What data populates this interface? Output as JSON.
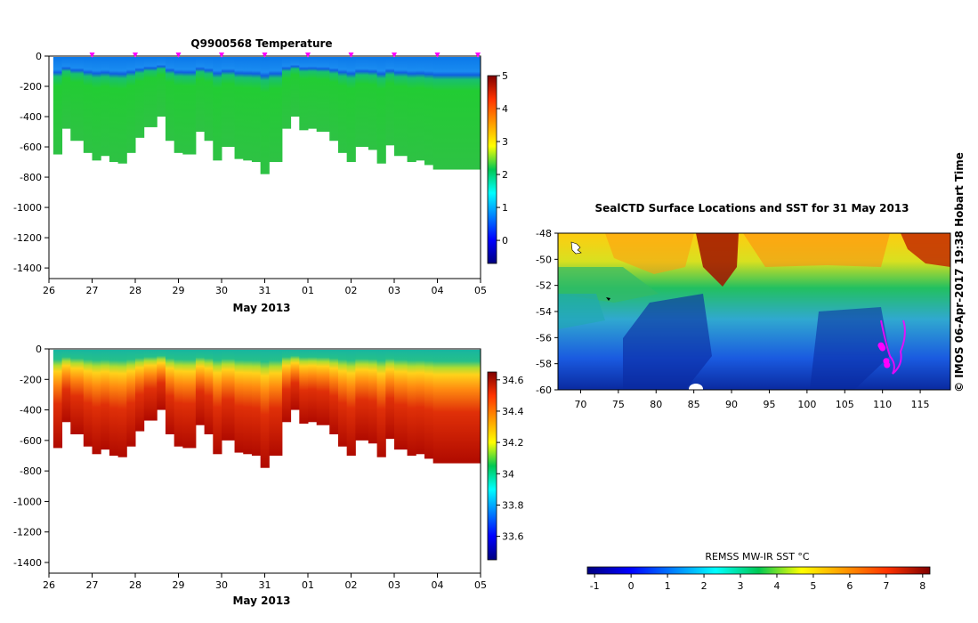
{
  "chart_data": [
    {
      "type": "heatmap",
      "title": "Q9900568  Temperature",
      "xlabel": "May 2013",
      "x_ticks": [
        "26",
        "27",
        "28",
        "29",
        "30",
        "31",
        "01",
        "02",
        "03",
        "04",
        "05"
      ],
      "xlim": [
        26,
        36
      ],
      "y_ticks": [
        0,
        -200,
        -400,
        -600,
        -800,
        -1000,
        -1200,
        -1400
      ],
      "ylim": [
        -1470,
        0
      ],
      "profile_times": [
        26.1,
        26.3,
        26.5,
        26.8,
        27.0,
        27.2,
        27.4,
        27.6,
        27.8,
        28.0,
        28.2,
        28.5,
        28.7,
        28.9,
        29.1,
        29.4,
        29.6,
        29.8,
        30.0,
        30.3,
        30.5,
        30.7,
        30.9,
        31.1,
        31.4,
        31.6,
        31.8,
        32.0,
        32.2,
        32.5,
        32.7,
        32.9,
        33.1,
        33.4,
        33.6,
        33.8,
        34.0,
        34.3,
        34.5,
        34.7,
        34.9
      ],
      "profile_depths": [
        650,
        480,
        560,
        640,
        690,
        660,
        700,
        710,
        640,
        540,
        470,
        400,
        560,
        640,
        650,
        500,
        560,
        690,
        600,
        680,
        690,
        700,
        780,
        700,
        480,
        400,
        490,
        480,
        500,
        560,
        640,
        700,
        600,
        620,
        710,
        590,
        660,
        700,
        690,
        720,
        750
      ],
      "markers": [
        27,
        28,
        29,
        30,
        31,
        32,
        33,
        34,
        35,
        36
      ],
      "colorbar": {
        "ticks": [
          0,
          1,
          2,
          3,
          4,
          5
        ],
        "range": [
          -0.7,
          5
        ]
      }
    },
    {
      "type": "heatmap",
      "title": "",
      "xlabel": "May 2013",
      "x_ticks": [
        "26",
        "27",
        "28",
        "29",
        "30",
        "31",
        "01",
        "02",
        "03",
        "04",
        "05"
      ],
      "xlim": [
        26,
        36
      ],
      "y_ticks": [
        0,
        -200,
        -400,
        -600,
        -800,
        -1000,
        -1200,
        -1400
      ],
      "ylim": [
        -1470,
        0
      ],
      "colorbar": {
        "ticks": [
          "33.6",
          "33.8",
          "34",
          "34.2",
          "34.4",
          "34.6"
        ],
        "range": [
          33.45,
          34.65
        ]
      }
    },
    {
      "type": "heatmap",
      "title": "SealCTD Surface Locations and SST for 31 May 2013",
      "x_ticks": [
        "70",
        "75",
        "80",
        "85",
        "90",
        "95",
        "100",
        "105",
        "110",
        "115"
      ],
      "xlim": [
        67,
        119
      ],
      "y_ticks": [
        "-48",
        "-50",
        "-52",
        "-54",
        "-56",
        "-58",
        "-60"
      ],
      "ylim": [
        -60,
        -48
      ],
      "colorbar_label": "REMSS MW-IR SST °C",
      "colorbar": {
        "ticks": [
          "-1",
          "0",
          "1",
          "2",
          "3",
          "4",
          "5",
          "6",
          "7",
          "8"
        ],
        "range": [
          -1.2,
          8.2
        ]
      }
    }
  ],
  "credit": "© IMOS 06-Apr-2017 19:38 Hobart Time",
  "colors": {
    "profile_marker": "#ff00ff",
    "frame": "#000000"
  }
}
